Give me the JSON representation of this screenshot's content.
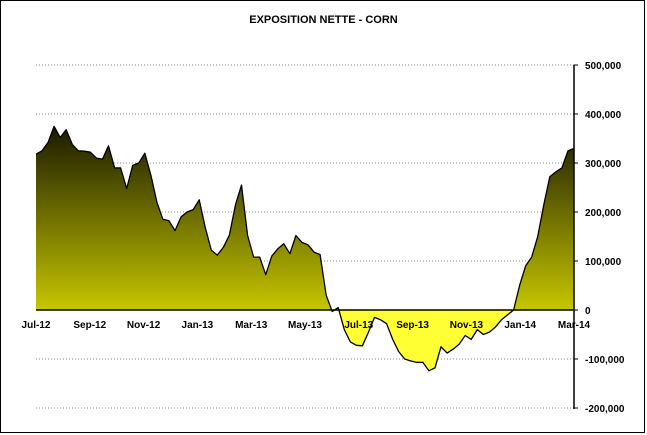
{
  "chart_data": {
    "type": "area",
    "title": "EXPOSITION NETTE - CORN",
    "xlabel": "",
    "ylabel": "",
    "ylim": [
      -200000,
      500000
    ],
    "ytick_values": [
      -200000,
      -100000,
      0,
      100000,
      200000,
      300000,
      400000,
      500000
    ],
    "ytick_labels": [
      "-200,000",
      "-100,000",
      "0",
      "100,000",
      "200,000",
      "300,000",
      "400,000",
      "500,000"
    ],
    "xtick_labels": [
      "Jul-12",
      "Sep-12",
      "Nov-12",
      "Jan-13",
      "Mar-13",
      "May-13",
      "Jul-13",
      "Sep-13",
      "Nov-13",
      "Jan-14",
      "Mar-14"
    ],
    "grid": "horizontal dashed",
    "colors": {
      "positive_top": "#1a1a00",
      "positive_bottom": "#ffff00",
      "negative": "#ffff33",
      "line": "#000000"
    },
    "series": [
      {
        "values": [
          318000,
          325000,
          342000,
          375000,
          352000,
          368000,
          338000,
          325000,
          324000,
          322000,
          310000,
          308000,
          335000,
          290000,
          290000,
          248000,
          295000,
          300000,
          320000,
          275000,
          220000,
          185000,
          182000,
          162000,
          190000,
          200000,
          205000,
          225000,
          168000,
          122000,
          112000,
          128000,
          153000,
          215000,
          255000,
          152000,
          108000,
          108000,
          72000,
          110000,
          125000,
          135000,
          115000,
          152000,
          138000,
          133000,
          118000,
          113000,
          30000,
          -3000,
          5000,
          -40000,
          -65000,
          -72000,
          -73000,
          -45000,
          -15000,
          -20000,
          -28000,
          -60000,
          -85000,
          -100000,
          -104000,
          -107000,
          -107000,
          -124000,
          -118000,
          -75000,
          -88000,
          -80000,
          -70000,
          -52000,
          -60000,
          -40000,
          -50000,
          -45000,
          -35000,
          -20000,
          -10000,
          0,
          50000,
          90000,
          108000,
          150000,
          215000,
          272000,
          282000,
          290000,
          325000,
          330000
        ]
      }
    ]
  }
}
